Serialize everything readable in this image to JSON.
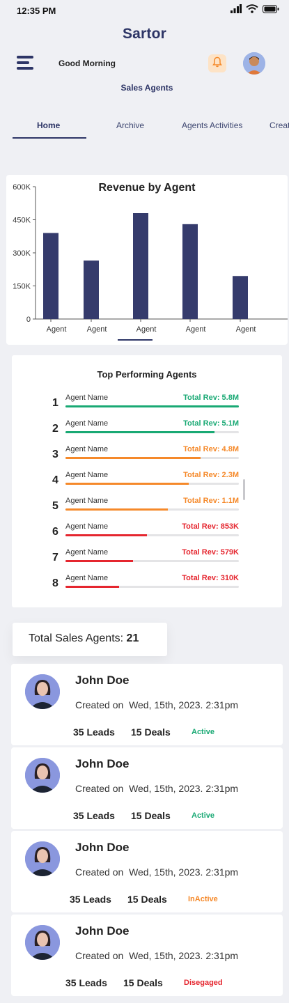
{
  "status_bar": {
    "time": "12:35 PM"
  },
  "header": {
    "brand": "Sartor",
    "greeting": "Good Morning",
    "subtitle": "Sales Agents"
  },
  "tabs": [
    {
      "label": "Home",
      "active": true
    },
    {
      "label": "Archive",
      "active": false
    },
    {
      "label": "Agents Activities",
      "active": false
    },
    {
      "label": "Creat",
      "active": false
    }
  ],
  "colors": {
    "brand": "#2d3566",
    "bar": "#353b6c",
    "green": "#19a974",
    "orange": "#f5892a",
    "red": "#e5262f",
    "bell_bg": "#fde3c6"
  },
  "chart_data": {
    "type": "bar",
    "title": "Revenue by Agent",
    "categories": [
      "Agent",
      "Agent",
      "Agent",
      "Agent",
      "Agent"
    ],
    "values": [
      390000,
      265000,
      480000,
      430000,
      195000
    ],
    "yticks": [
      "0",
      "150K",
      "300K",
      "450K",
      "600K"
    ],
    "ylim": [
      0,
      600000
    ],
    "xlabel": "",
    "ylabel": "",
    "grid": false
  },
  "top_performers": {
    "title": "Top Performing Agents",
    "rows": [
      {
        "rank": "1",
        "name": "Agent Name",
        "revenue": "Total Rev: 5.8M",
        "level": "green",
        "fill": 1.0
      },
      {
        "rank": "2",
        "name": "Agent Name",
        "revenue": "Total Rev: 5.1M",
        "level": "green",
        "fill": 0.86
      },
      {
        "rank": "3",
        "name": "Agent Name",
        "revenue": "Total Rev: 4.8M",
        "level": "orange",
        "fill": 0.78
      },
      {
        "rank": "4",
        "name": "Agent Name",
        "revenue": "Total Rev: 2.3M",
        "level": "orange",
        "fill": 0.71
      },
      {
        "rank": "5",
        "name": "Agent Name",
        "revenue": "Total Rev: 1.1M",
        "level": "orange",
        "fill": 0.59
      },
      {
        "rank": "6",
        "name": "Agent Name",
        "revenue": "Total Rev: 853K",
        "level": "red",
        "fill": 0.47
      },
      {
        "rank": "7",
        "name": "Agent Name",
        "revenue": "Total Rev: 579K",
        "level": "red",
        "fill": 0.39
      },
      {
        "rank": "8",
        "name": "Agent Name",
        "revenue": "Total Rev: 310K",
        "level": "red",
        "fill": 0.31
      }
    ]
  },
  "total_agents": {
    "label": "Total Sales Agents:",
    "count": "21"
  },
  "agents": [
    {
      "name": "John Doe",
      "created_label": "Created on",
      "created_date": "Wed, 15th, 2023. 2:31pm",
      "leads": "35 Leads",
      "deals": "15 Deals",
      "status": "Active",
      "status_color": "green"
    },
    {
      "name": "John Doe",
      "created_label": "Created on",
      "created_date": "Wed, 15th, 2023. 2:31pm",
      "leads": "35 Leads",
      "deals": "15 Deals",
      "status": "Active",
      "status_color": "green"
    },
    {
      "name": "John Doe",
      "created_label": "Created on",
      "created_date": "Wed, 15th, 2023. 2:31pm",
      "leads": "35 Leads",
      "deals": "15 Deals",
      "status": "InActive",
      "status_color": "orange"
    },
    {
      "name": "John Doe",
      "created_label": "Created on",
      "created_date": "Wed, 15th, 2023. 2:31pm",
      "leads": "35 Leads",
      "deals": "15 Deals",
      "status": "Disegaged",
      "status_color": "red"
    }
  ]
}
